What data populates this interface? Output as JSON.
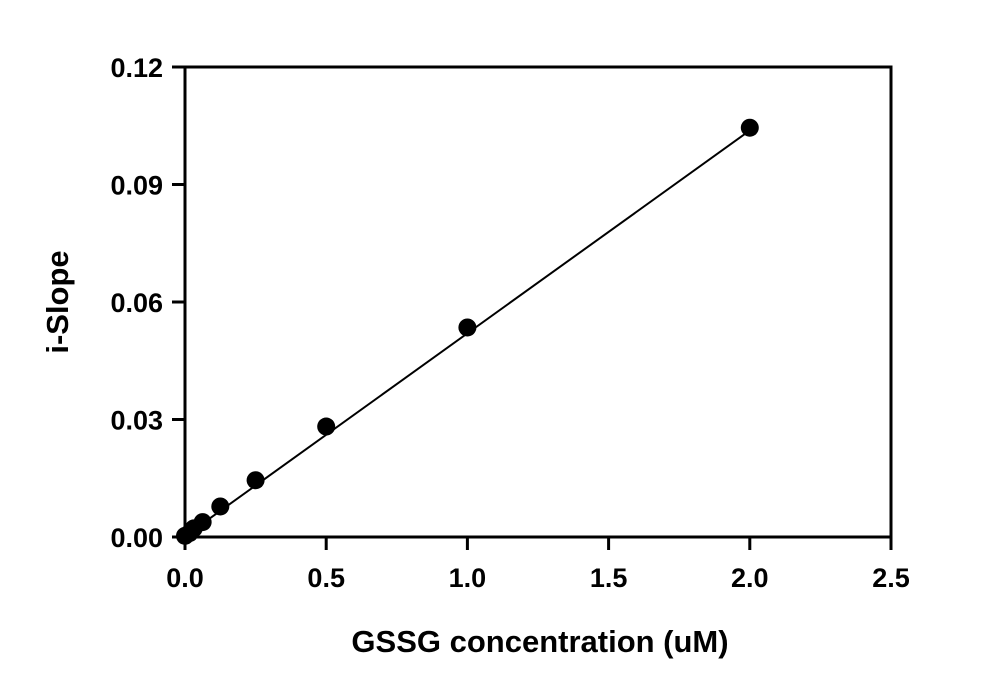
{
  "chart_data": {
    "type": "scatter",
    "title": "",
    "xlabel": "GSSG concentration (uM)",
    "ylabel": "i-Slope",
    "xlim": [
      0,
      2.5
    ],
    "ylim": [
      0,
      0.12
    ],
    "x_ticks": [
      "0.0",
      "0.5",
      "1.0",
      "1.5",
      "2.0",
      "2.5"
    ],
    "y_ticks": [
      "0.00",
      "0.03",
      "0.06",
      "0.09",
      "0.12"
    ],
    "grid": false,
    "legend": "none",
    "series": [
      {
        "x": [
          0,
          0.016,
          0.031,
          0.0625,
          0.125,
          0.25,
          0.5,
          1.0,
          2.0
        ],
        "y": [
          0.0003,
          0.001,
          0.0022,
          0.0038,
          0.0078,
          0.0145,
          0.0282,
          0.0535,
          0.1045
        ]
      }
    ],
    "fit_line": {
      "x": [
        0,
        2.0
      ],
      "y": [
        0.0002,
        0.1038
      ]
    },
    "colors": {
      "marker": "#000000",
      "line": "#000000",
      "axis": "#000000"
    }
  }
}
